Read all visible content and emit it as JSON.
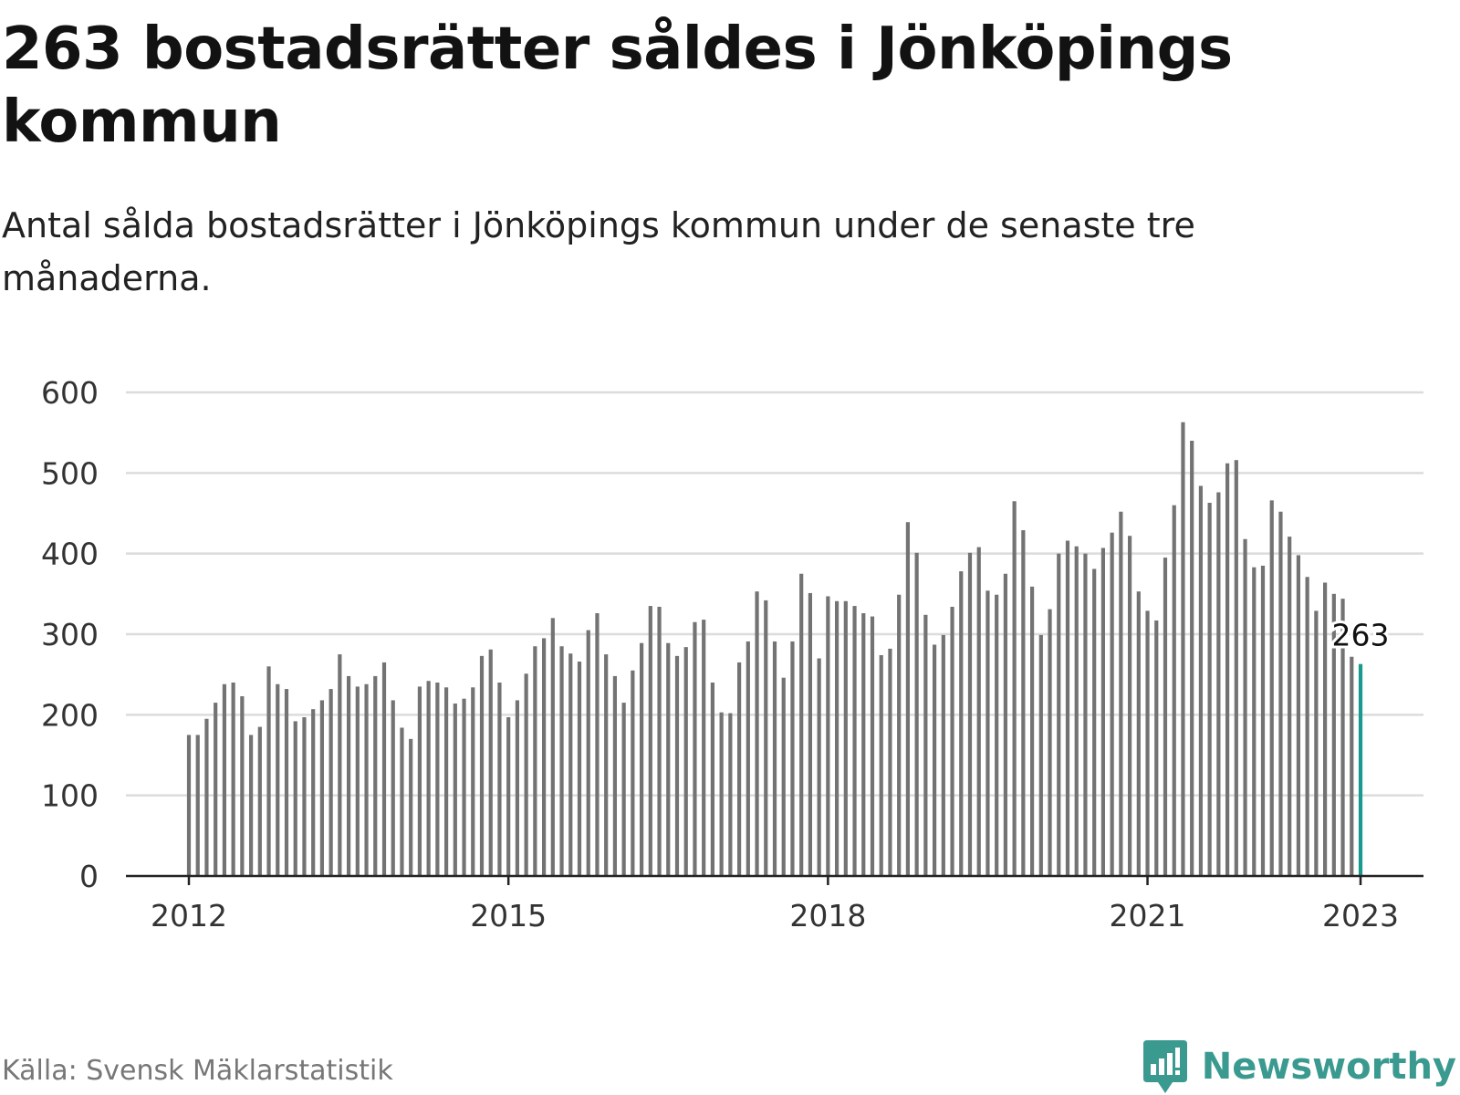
{
  "header": {
    "title": "263 bostadsrätter såldes i Jönköpings kommun",
    "subtitle": "Antal sålda bostadsrätter i Jönköpings kommun under de senaste tre månaderna."
  },
  "footer": {
    "source": "Källa: Svensk Mäklarstatistik",
    "brand": "Newsworthy"
  },
  "colors": {
    "bar": "#737373",
    "highlight": "#1a9a8e",
    "grid": "#dcdcdc",
    "axis": "#222222",
    "brand": "#3a9a90"
  },
  "icons": {
    "brand_logo": "bar-chart-speech-bubble-icon"
  },
  "chart_data": {
    "type": "bar",
    "xlabel": "",
    "ylabel": "",
    "ylim": [
      0,
      600
    ],
    "yticks": [
      0,
      100,
      200,
      300,
      400,
      500,
      600
    ],
    "xticks": [
      "2012",
      "2015",
      "2018",
      "2021",
      "2023"
    ],
    "grid": true,
    "highlight_label": "263",
    "series": [
      {
        "values": [
          175,
          175,
          195,
          215,
          238,
          240,
          223,
          175,
          185,
          260,
          238,
          232,
          192,
          197,
          207,
          218,
          232,
          275,
          248,
          235,
          238,
          248,
          265,
          218,
          184,
          170,
          235,
          242,
          240,
          234,
          214,
          220,
          234,
          273,
          281,
          240,
          197,
          218,
          251,
          285,
          295,
          320,
          285,
          276,
          266,
          305,
          326,
          275,
          248,
          215,
          255,
          289,
          335,
          334,
          289,
          273,
          284,
          315,
          318,
          240,
          203,
          202,
          265,
          291,
          353,
          342,
          291,
          246,
          291,
          375,
          351,
          270,
          347,
          341,
          341,
          335,
          326,
          322,
          274,
          282,
          349,
          439,
          401,
          324,
          287,
          299,
          334,
          378,
          401,
          408,
          354,
          349,
          375,
          465,
          429,
          359,
          299,
          331,
          400,
          416,
          409,
          400,
          381,
          407,
          426,
          452,
          422,
          353,
          329,
          317,
          395,
          460,
          563,
          540,
          484,
          463,
          476,
          512,
          516,
          418,
          383,
          385,
          466,
          452,
          421,
          398,
          371,
          329,
          364,
          350,
          344,
          272,
          263
        ]
      }
    ]
  }
}
